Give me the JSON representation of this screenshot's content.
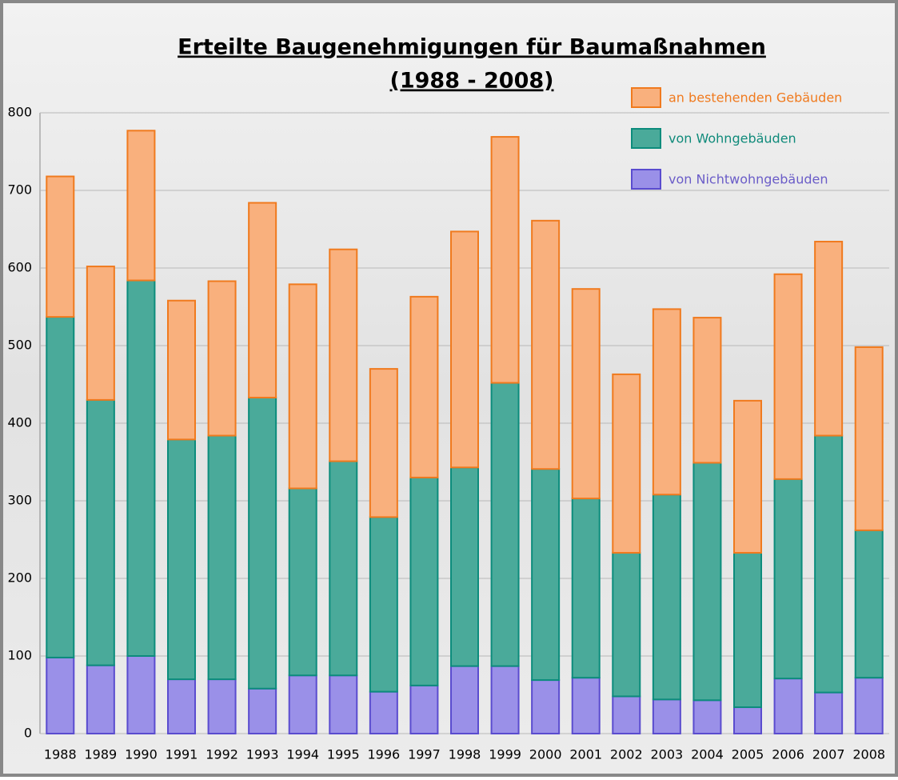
{
  "chart_data": {
    "type": "stacked_bar",
    "title": "Erteilte Baugenehmigungen für Baumaßnahmen",
    "subtitle": "(1988 - 2008)",
    "categories": [
      "1988",
      "1989",
      "1990",
      "1991",
      "1992",
      "1993",
      "1994",
      "1995",
      "1996",
      "1997",
      "1998",
      "1999",
      "2000",
      "2001",
      "2002",
      "2003",
      "2004",
      "2005",
      "2006",
      "2007",
      "2008"
    ],
    "series": [
      {
        "name": "von Nichtwohngebäuden",
        "color": "#9a90e8",
        "values": [
          98,
          88,
          100,
          70,
          70,
          58,
          75,
          75,
          54,
          62,
          87,
          87,
          69,
          72,
          48,
          44,
          43,
          34,
          71,
          53,
          72
        ]
      },
      {
        "name": "von Wohngebäuden",
        "color": "#4aaa9a",
        "values": [
          439,
          342,
          484,
          309,
          314,
          375,
          241,
          276,
          225,
          268,
          256,
          365,
          272,
          231,
          185,
          264,
          306,
          199,
          257,
          331,
          190
        ]
      },
      {
        "name": "an bestehenden Gebäuden",
        "color": "#f9b07d",
        "values": [
          181,
          172,
          193,
          179,
          199,
          251,
          263,
          273,
          191,
          233,
          304,
          317,
          320,
          270,
          230,
          239,
          187,
          196,
          264,
          250,
          236
        ]
      }
    ],
    "ylim": [
      0,
      800
    ],
    "yticks": [
      0,
      100,
      200,
      300,
      400,
      500,
      600,
      700,
      800
    ],
    "grid": true
  }
}
